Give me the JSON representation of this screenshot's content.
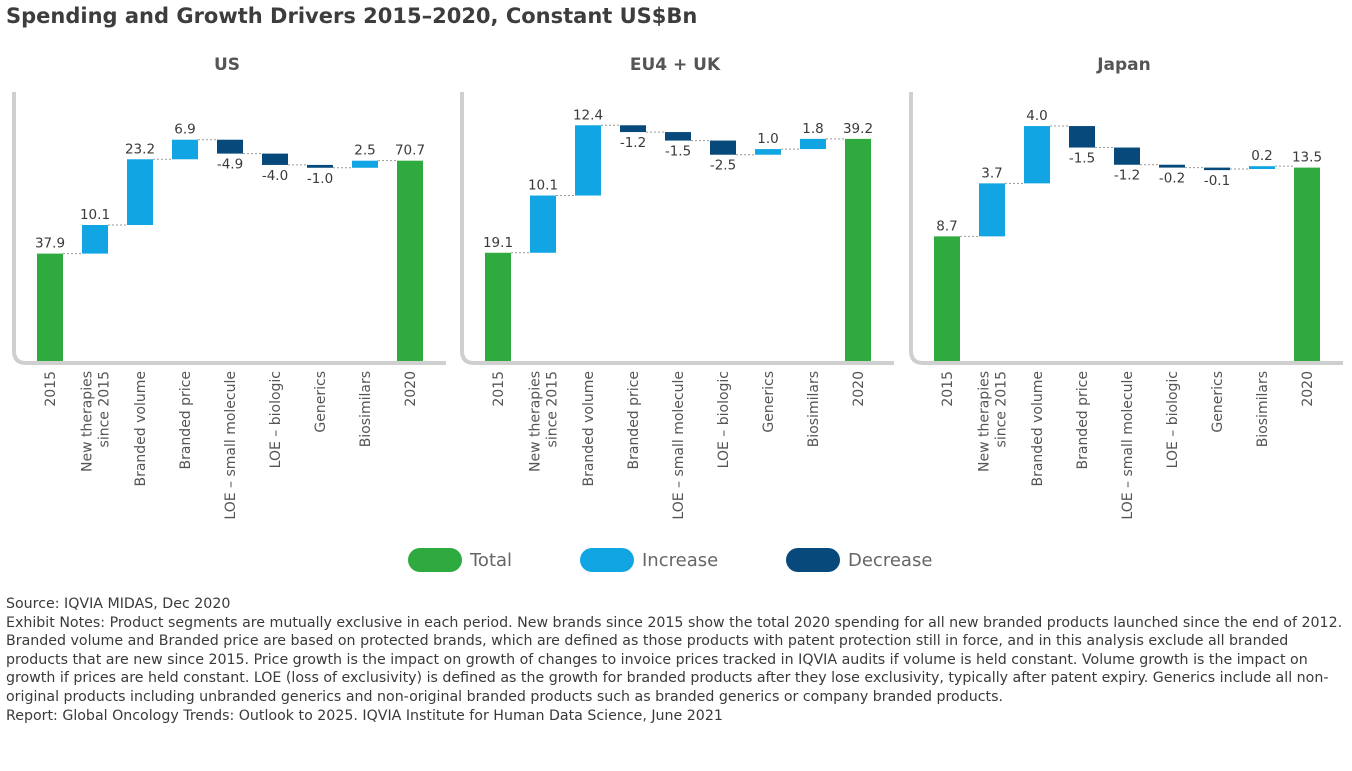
{
  "title": "Spending and Growth Drivers 2015–2020, Constant US$Bn",
  "colors": {
    "total": "#2eaa3f",
    "increase": "#12a5e3",
    "decrease": "#07497a",
    "axis": "#cfcfcf",
    "text": "#3a3a3a"
  },
  "legend": [
    {
      "label": "Total",
      "color": "#2eaa3f"
    },
    {
      "label": "Increase",
      "color": "#12a5e3"
    },
    {
      "label": "Decrease",
      "color": "#07497a"
    }
  ],
  "chart_data": [
    {
      "type": "waterfall",
      "title": "US",
      "categories": [
        "2015",
        "New therapies since 2015",
        "Branded volume",
        "Branded price",
        "LOE – small molecule",
        "LOE – biologic",
        "Generics",
        "Biosimilars",
        "2020"
      ],
      "values": [
        37.9,
        10.1,
        23.2,
        6.9,
        -4.9,
        -4.0,
        -1.0,
        2.5,
        70.7
      ],
      "labels": [
        "37.9",
        "10.1",
        "23.2",
        "6.9",
        "-4.9",
        "-4.0",
        "-1.0",
        "2.5",
        "70.7"
      ],
      "kinds": [
        "total",
        "increase",
        "increase",
        "increase",
        "decrease",
        "decrease",
        "decrease",
        "increase",
        "total"
      ],
      "ylim": [
        0,
        90
      ]
    },
    {
      "type": "waterfall",
      "title": "EU4 + UK",
      "categories": [
        "2015",
        "New therapies since 2015",
        "Branded volume",
        "Branded price",
        "LOE – small molecule",
        "LOE – biologic",
        "Generics",
        "Biosimilars",
        "2020"
      ],
      "values": [
        19.1,
        10.1,
        12.4,
        -1.2,
        -1.5,
        -2.5,
        1.0,
        1.8,
        39.2
      ],
      "labels": [
        "19.1",
        "10.1",
        "12.4",
        "-1.2",
        "-1.5",
        "-2.5",
        "1.0",
        "1.8",
        "39.2"
      ],
      "kinds": [
        "total",
        "increase",
        "increase",
        "decrease",
        "decrease",
        "decrease",
        "increase",
        "increase",
        "total"
      ],
      "ylim": [
        0,
        45
      ]
    },
    {
      "type": "waterfall",
      "title": "Japan",
      "categories": [
        "2015",
        "New therapies since 2015",
        "Branded volume",
        "Branded price",
        "LOE – small molecule",
        "LOE – biologic",
        "Generics",
        "Biosimilars",
        "2020"
      ],
      "values": [
        8.7,
        3.7,
        4.0,
        -1.5,
        -1.2,
        -0.2,
        -0.1,
        0.2,
        13.5
      ],
      "labels": [
        "8.7",
        "3.7",
        "4.0",
        "-1.5",
        "-1.2",
        "-0.2",
        "-0.1",
        "0.2",
        "13.5"
      ],
      "kinds": [
        "total",
        "increase",
        "increase",
        "decrease",
        "decrease",
        "decrease",
        "decrease",
        "increase",
        "total"
      ],
      "ylim": [
        0,
        17.8
      ]
    }
  ],
  "notes": {
    "source": "Source: IQVIA MIDAS, Dec 2020",
    "exhibit": "Exhibit Notes: Product segments are mutually exclusive in each period. New brands since 2015 show the total 2020 spending for all new branded products launched since the end of 2012. Branded volume and Branded price are based on protected brands, which are defined as those products with patent protection still in force, and in this analysis exclude all branded products that are new since 2015. Price growth is the impact on growth of changes to invoice prices tracked in IQVIA audits if volume is held constant. Volume growth is the impact on growth if prices are held constant. LOE (loss of exclusivity) is defined as the growth for branded products after they lose exclusivity, typically after patent expiry. Generics include all non-original products including unbranded generics and non-original branded products such as branded generics or company branded products.",
    "report": "Report: Global Oncology Trends: Outlook to 2025. IQVIA Institute for Human Data Science, June 2021"
  }
}
